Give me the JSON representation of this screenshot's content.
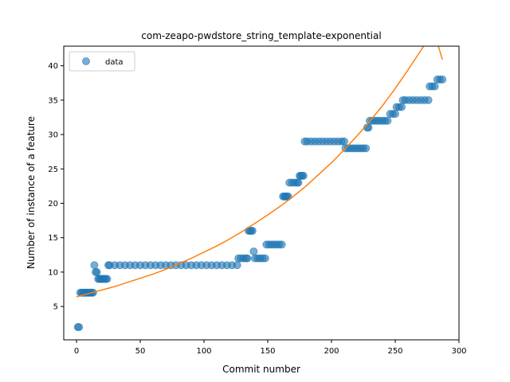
{
  "chart_data": {
    "type": "scatter",
    "title": "com-zeapo-pwdstore_string_template-exponential",
    "xlabel": "Commit number",
    "ylabel": "Number of instance of a feature",
    "xlim": [
      -10,
      300
    ],
    "ylim": [
      0.15,
      42.85
    ],
    "xticks": [
      0,
      50,
      100,
      150,
      200,
      250,
      300
    ],
    "yticks": [
      5,
      10,
      15,
      20,
      25,
      30,
      35,
      40
    ],
    "grid": false,
    "legend": {
      "placement": "top-left",
      "entries": [
        "data"
      ]
    },
    "colors": {
      "data": "#1f77b4",
      "fit": "#ff7f0e"
    },
    "series": [
      {
        "name": "data",
        "kind": "scatter",
        "points": [
          [
            1,
            2
          ],
          [
            2,
            2
          ],
          [
            3,
            7
          ],
          [
            4,
            7
          ],
          [
            5,
            7
          ],
          [
            6,
            7
          ],
          [
            7,
            7
          ],
          [
            8,
            7
          ],
          [
            9,
            7
          ],
          [
            10,
            7
          ],
          [
            11,
            7
          ],
          [
            12,
            7
          ],
          [
            13,
            7
          ],
          [
            14,
            11
          ],
          [
            15,
            10
          ],
          [
            16,
            10
          ],
          [
            17,
            9
          ],
          [
            18,
            9
          ],
          [
            19,
            9
          ],
          [
            20,
            9
          ],
          [
            21,
            9
          ],
          [
            22,
            9
          ],
          [
            23,
            9
          ],
          [
            24,
            9
          ],
          [
            25,
            11
          ],
          [
            26,
            11
          ],
          [
            30,
            11
          ],
          [
            34,
            11
          ],
          [
            38,
            11
          ],
          [
            42,
            11
          ],
          [
            46,
            11
          ],
          [
            50,
            11
          ],
          [
            54,
            11
          ],
          [
            58,
            11
          ],
          [
            62,
            11
          ],
          [
            66,
            11
          ],
          [
            70,
            11
          ],
          [
            74,
            11
          ],
          [
            78,
            11
          ],
          [
            82,
            11
          ],
          [
            86,
            11
          ],
          [
            90,
            11
          ],
          [
            94,
            11
          ],
          [
            98,
            11
          ],
          [
            102,
            11
          ],
          [
            106,
            11
          ],
          [
            110,
            11
          ],
          [
            114,
            11
          ],
          [
            118,
            11
          ],
          [
            122,
            11
          ],
          [
            126,
            11
          ],
          [
            127,
            12
          ],
          [
            129,
            12
          ],
          [
            131,
            12
          ],
          [
            133,
            12
          ],
          [
            134,
            12
          ],
          [
            135,
            16
          ],
          [
            136,
            16
          ],
          [
            137,
            16
          ],
          [
            138,
            16
          ],
          [
            139,
            13
          ],
          [
            140,
            12
          ],
          [
            142,
            12
          ],
          [
            144,
            12
          ],
          [
            146,
            12
          ],
          [
            148,
            12
          ],
          [
            149,
            14
          ],
          [
            151,
            14
          ],
          [
            153,
            14
          ],
          [
            155,
            14
          ],
          [
            157,
            14
          ],
          [
            159,
            14
          ],
          [
            161,
            14
          ],
          [
            162,
            21
          ],
          [
            163,
            21
          ],
          [
            164,
            21
          ],
          [
            165,
            21
          ],
          [
            166,
            21
          ],
          [
            167,
            23
          ],
          [
            169,
            23
          ],
          [
            171,
            23
          ],
          [
            173,
            23
          ],
          [
            174,
            23
          ],
          [
            175,
            24
          ],
          [
            176,
            24
          ],
          [
            177,
            24
          ],
          [
            178,
            24
          ],
          [
            179,
            29
          ],
          [
            181,
            29
          ],
          [
            184,
            29
          ],
          [
            187,
            29
          ],
          [
            190,
            29
          ],
          [
            193,
            29
          ],
          [
            196,
            29
          ],
          [
            199,
            29
          ],
          [
            202,
            29
          ],
          [
            205,
            29
          ],
          [
            208,
            29
          ],
          [
            210,
            29
          ],
          [
            211,
            28
          ],
          [
            213,
            28
          ],
          [
            215,
            28
          ],
          [
            217,
            28
          ],
          [
            219,
            28
          ],
          [
            221,
            28
          ],
          [
            223,
            28
          ],
          [
            225,
            28
          ],
          [
            227,
            28
          ],
          [
            228,
            31
          ],
          [
            229,
            31
          ],
          [
            230,
            32
          ],
          [
            232,
            32
          ],
          [
            234,
            32
          ],
          [
            236,
            32
          ],
          [
            238,
            32
          ],
          [
            240,
            32
          ],
          [
            242,
            32
          ],
          [
            244,
            32
          ],
          [
            246,
            33
          ],
          [
            248,
            33
          ],
          [
            250,
            33
          ],
          [
            251,
            34
          ],
          [
            253,
            34
          ],
          [
            255,
            34
          ],
          [
            256,
            35
          ],
          [
            258,
            35
          ],
          [
            261,
            35
          ],
          [
            264,
            35
          ],
          [
            267,
            35
          ],
          [
            270,
            35
          ],
          [
            273,
            35
          ],
          [
            276,
            35
          ],
          [
            277,
            37
          ],
          [
            279,
            37
          ],
          [
            281,
            37
          ],
          [
            283,
            38
          ],
          [
            285,
            38
          ],
          [
            287,
            38
          ]
        ]
      },
      {
        "name": "",
        "kind": "line",
        "points": [
          [
            0,
            6.4
          ],
          [
            10,
            6.9
          ],
          [
            20,
            7.4
          ],
          [
            30,
            7.9
          ],
          [
            40,
            8.5
          ],
          [
            50,
            9.1
          ],
          [
            60,
            9.7
          ],
          [
            70,
            10.4
          ],
          [
            80,
            11.2
          ],
          [
            90,
            12.0
          ],
          [
            100,
            12.9
          ],
          [
            110,
            13.8
          ],
          [
            120,
            14.8
          ],
          [
            130,
            15.9
          ],
          [
            140,
            17.1
          ],
          [
            150,
            18.3
          ],
          [
            160,
            19.6
          ],
          [
            170,
            21.0
          ],
          [
            180,
            22.5
          ],
          [
            190,
            24.2
          ],
          [
            200,
            25.9
          ],
          [
            210,
            27.8
          ],
          [
            220,
            29.8
          ],
          [
            230,
            31.9
          ],
          [
            240,
            34.2
          ],
          [
            250,
            36.7
          ],
          [
            260,
            39.4
          ],
          [
            270,
            42.2
          ],
          [
            280,
            45.2
          ],
          [
            287,
            40.9
          ]
        ]
      }
    ]
  }
}
